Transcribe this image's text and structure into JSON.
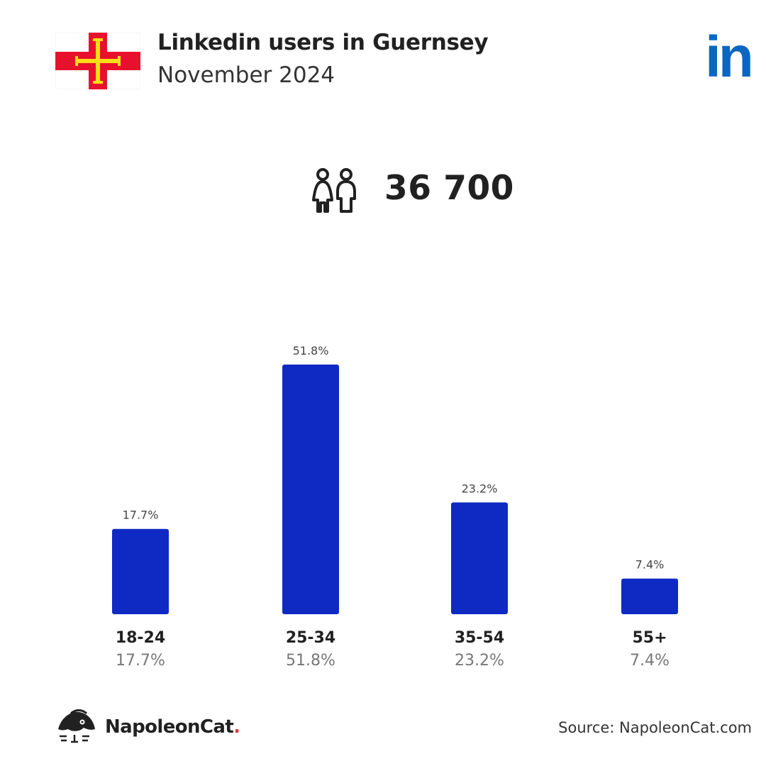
{
  "header": {
    "title": "Linkedin users in Guernsey",
    "subtitle": "November 2024",
    "flag_icon": "guernsey-flag-icon",
    "platform_icon": "linkedin-logo-icon",
    "platform_logo_text": "in"
  },
  "summary": {
    "icon": "users-icon",
    "total_users": "36 700"
  },
  "chart_data": {
    "type": "bar",
    "categories": [
      "18-24",
      "25-34",
      "35-54",
      "55+"
    ],
    "values": [
      17.7,
      51.8,
      23.2,
      7.4
    ],
    "value_labels": [
      "17.7%",
      "51.8%",
      "23.2%",
      "7.4%"
    ],
    "title": "",
    "xlabel": "",
    "ylabel": "",
    "ylim": [
      0,
      51.8
    ],
    "grid": false,
    "legend": "none",
    "bar_color": "#0f2ac3"
  },
  "footer": {
    "brand_name": "NapoleonCat",
    "brand_dot": ".",
    "brand_icon": "napoleoncat-logo-icon",
    "source": "Source: NapoleonCat.com"
  },
  "colors": {
    "bar": "#0f2ac3",
    "linkedin_blue": "#0a66c2",
    "flag_red": "#e8112d",
    "flag_gold": "#f9dd16",
    "brand_dot": "#e53935"
  }
}
